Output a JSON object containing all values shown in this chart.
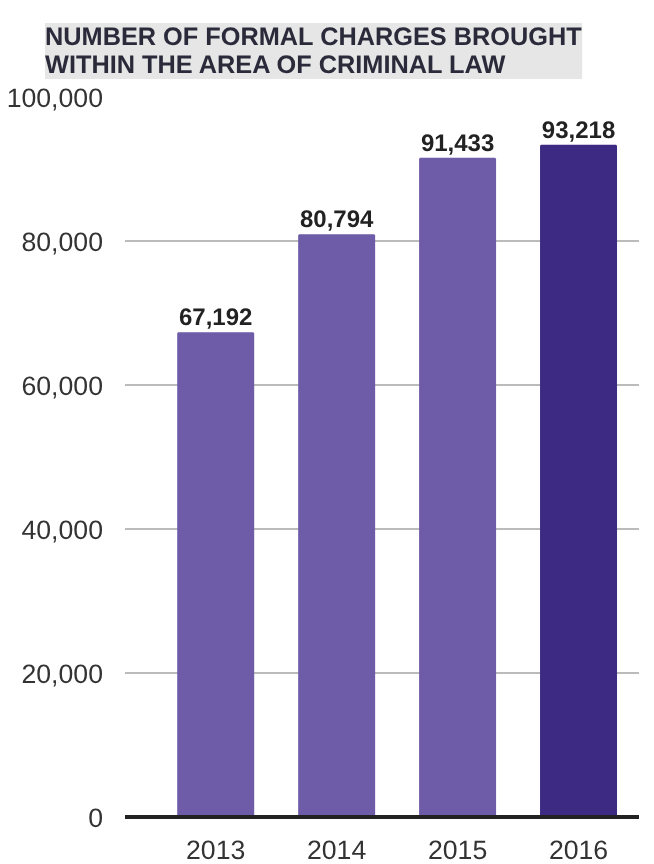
{
  "chart_data": {
    "type": "bar",
    "title": "NUMBER OF FORMAL CHARGES BROUGHT WITHIN THE AREA OF CRIMINAL LAW",
    "categories": [
      "2013",
      "2014",
      "2015",
      "2016"
    ],
    "values": [
      67192,
      80794,
      91433,
      93218
    ],
    "colors": [
      "#6e5ca8",
      "#6e5ca8",
      "#6e5ca8",
      "#3d2a82"
    ],
    "ylim": [
      0,
      100000
    ],
    "yticks": [
      {
        "value": 0,
        "label": "0"
      },
      {
        "value": 20000,
        "label": "20,000"
      },
      {
        "value": 40000,
        "label": "40,000"
      },
      {
        "value": 60000,
        "label": "60,000"
      },
      {
        "value": 80000,
        "label": "80,000"
      },
      {
        "value": 100000,
        "label": "100,000"
      }
    ],
    "value_labels": [
      "67,192",
      "80,794",
      "91,433",
      "93,218"
    ],
    "grid": "y"
  }
}
